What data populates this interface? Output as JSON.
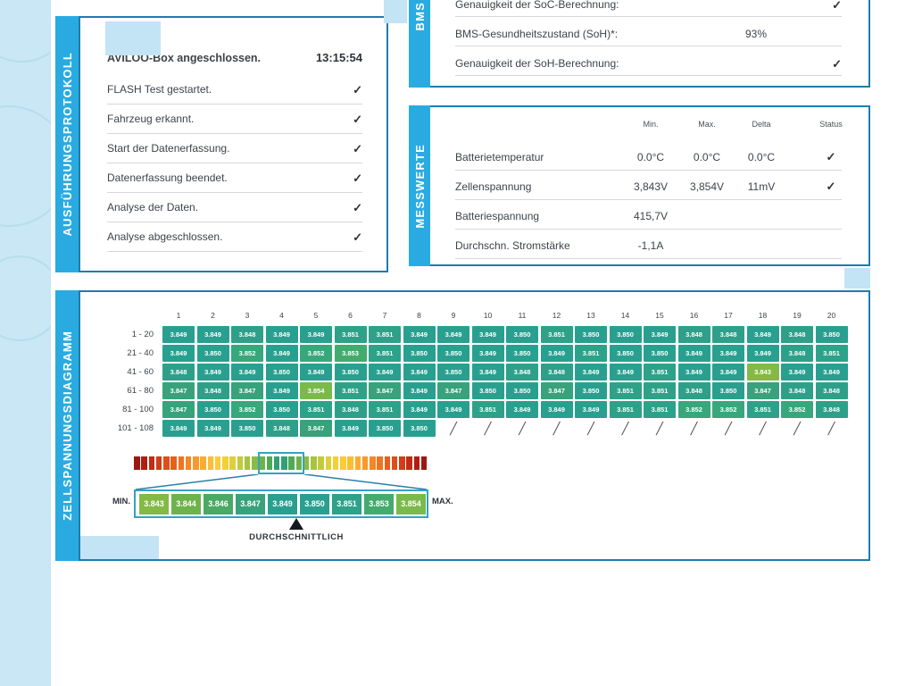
{
  "colors": {
    "accent_tab": "#29abe2",
    "panel_border": "#1d7dab",
    "band": "#c9e7f5",
    "grid_teal": "#29a08f",
    "grid_lime": "#7fbb45"
  },
  "bms": {
    "tab_label": "BMS",
    "rows": [
      {
        "label": "Genauigkeit der SoC-Berechnung:",
        "value": "",
        "check": true
      },
      {
        "label": "BMS-Gesundheitszustand (SoH)*:",
        "value": "93%",
        "check": false
      },
      {
        "label": "Genauigkeit der SoH-Berechnung:",
        "value": "",
        "check": true
      }
    ]
  },
  "protokoll": {
    "tab_label": "AUSFÜHRUNGSPROTOKOLL",
    "header_label": "AVILOO-Box angeschlossen.",
    "header_time": "13:15:54",
    "steps": [
      {
        "label": "FLASH Test gestartet.",
        "check": true
      },
      {
        "label": "Fahrzeug erkannt.",
        "check": true
      },
      {
        "label": "Start der Datenerfassung.",
        "check": true
      },
      {
        "label": "Datenerfassung beendet.",
        "check": true
      },
      {
        "label": "Analyse der Daten.",
        "check": true
      },
      {
        "label": "Analyse abgeschlossen.",
        "check": true
      }
    ]
  },
  "messwerte": {
    "tab_label": "MESSWERTE",
    "columns": [
      "Min.",
      "Max.",
      "Delta",
      "Status"
    ],
    "rows": [
      {
        "label": "Batterietemperatur",
        "min": "0.0°C",
        "max": "0.0°C",
        "delta": "0.0°C",
        "check": true
      },
      {
        "label": "Zellenspannung",
        "min": "3,843V",
        "max": "3,854V",
        "delta": "11mV",
        "check": true
      },
      {
        "label": "Batteriespannung",
        "min": "415,7V",
        "max": "",
        "delta": "",
        "check": false
      },
      {
        "label": "Durchschn. Stromstärke",
        "min": "-1,1A",
        "max": "",
        "delta": "",
        "check": false
      }
    ]
  },
  "zellspannung": {
    "tab_label": "ZELLSPANNUNGSDIAGRAMM",
    "min_label": "MIN.",
    "max_label": "MAX.",
    "avg_label": "DURCHSCHNITTLICH"
  },
  "chart_data": {
    "type": "heatmap",
    "title": "Zellspannungsdiagramm",
    "col_headers": [
      "1",
      "2",
      "3",
      "4",
      "5",
      "6",
      "7",
      "8",
      "9",
      "10",
      "11",
      "12",
      "13",
      "14",
      "15",
      "16",
      "17",
      "18",
      "19",
      "20"
    ],
    "row_labels": [
      "1 - 20",
      "21 - 40",
      "41 - 60",
      "61 - 80",
      "81 - 100",
      "101 - 108"
    ],
    "values": [
      [
        3.849,
        3.849,
        3.848,
        3.849,
        3.849,
        3.851,
        3.851,
        3.849,
        3.849,
        3.849,
        3.85,
        3.851,
        3.85,
        3.85,
        3.849,
        3.848,
        3.848,
        3.849,
        3.848,
        3.85
      ],
      [
        3.849,
        3.85,
        3.852,
        3.849,
        3.852,
        3.853,
        3.851,
        3.85,
        3.85,
        3.849,
        3.85,
        3.849,
        3.851,
        3.85,
        3.85,
        3.849,
        3.849,
        3.849,
        3.848,
        3.851
      ],
      [
        3.848,
        3.849,
        3.849,
        3.85,
        3.849,
        3.85,
        3.849,
        3.849,
        3.85,
        3.849,
        3.848,
        3.848,
        3.849,
        3.849,
        3.851,
        3.849,
        3.849,
        3.843,
        3.849,
        3.849
      ],
      [
        3.847,
        3.848,
        3.847,
        3.849,
        3.854,
        3.851,
        3.847,
        3.849,
        3.847,
        3.85,
        3.85,
        3.847,
        3.85,
        3.851,
        3.851,
        3.848,
        3.85,
        3.847,
        3.848,
        3.848
      ],
      [
        3.847,
        3.85,
        3.852,
        3.85,
        3.851,
        3.848,
        3.851,
        3.849,
        3.849,
        3.851,
        3.849,
        3.849,
        3.849,
        3.851,
        3.851,
        3.852,
        3.852,
        3.851,
        3.852,
        3.848
      ],
      [
        3.849,
        3.849,
        3.85,
        3.848,
        3.847,
        3.849,
        3.85,
        3.85,
        null,
        null,
        null,
        null,
        null,
        null,
        null,
        null,
        null,
        null,
        null,
        null
      ]
    ],
    "min": 3.843,
    "max": 3.854,
    "scale_values": [
      3.843,
      3.844,
      3.846,
      3.847,
      3.849,
      3.85,
      3.851,
      3.853,
      3.854
    ],
    "value_colors": {
      "3.843": "#83ba45",
      "3.844": "#6db34c",
      "3.846": "#4aa964",
      "3.847": "#37a27b",
      "3.848": "#2ea089",
      "3.849": "#29a08f",
      "3.850": "#29a08f",
      "3.851": "#2da289",
      "3.852": "#38a77c",
      "3.853": "#43ab6d",
      "3.854": "#7aba4a"
    },
    "colorbar": [
      "#9b1713",
      "#b21d12",
      "#c42a14",
      "#d23c18",
      "#de4e1c",
      "#e75f1f",
      "#ef7322",
      "#f48726",
      "#f89a2a",
      "#fbac2e",
      "#fcbd32",
      "#fccb35",
      "#f2d036",
      "#ddd03a",
      "#c2cb3d",
      "#a6c341",
      "#8abb46",
      "#6db34c",
      "#50aa55",
      "#339f74",
      "#339f74",
      "#50aa55",
      "#6db34c",
      "#8abb46",
      "#a6c341",
      "#c2cb3d",
      "#ddd03a",
      "#f2d036",
      "#fccb35",
      "#fcbd32",
      "#fbac2e",
      "#f89a2a",
      "#f48726",
      "#ef7322",
      "#e75f1f",
      "#de4e1c",
      "#d23c18",
      "#c42a14",
      "#b21d12",
      "#9b1713"
    ]
  }
}
